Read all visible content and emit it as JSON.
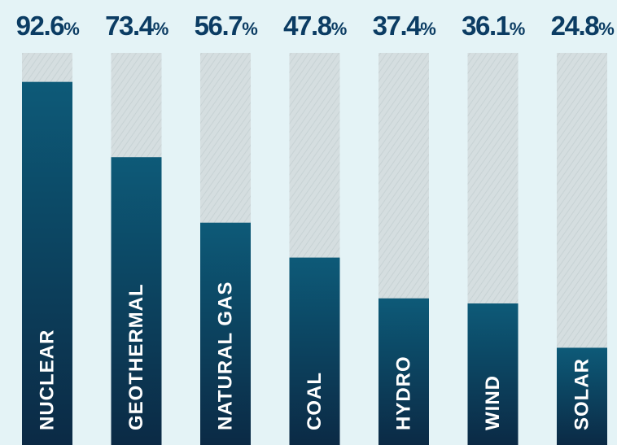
{
  "colors": {
    "background": "#e4f3f6",
    "bar_fill_top": "#0d5a78",
    "bar_fill_bottom": "#0b2a45",
    "bar_track": "#d5dee0",
    "bar_track_hatch": "#c7d2d4",
    "value_text": "#0b3c63",
    "label_text": "#ffffff"
  },
  "chart_data": {
    "type": "bar",
    "orientation": "vertical",
    "categories": [
      "NUCLEAR",
      "GEOTHERMAL",
      "NATURAL GAS",
      "COAL",
      "HYDRO",
      "WIND",
      "SOLAR"
    ],
    "values": [
      92.6,
      73.4,
      56.7,
      47.8,
      37.4,
      36.1,
      24.8
    ],
    "value_unit": "%",
    "ylim": [
      0,
      100
    ],
    "title": "",
    "xlabel": "",
    "ylabel": "",
    "grid": false,
    "legend": "none",
    "data_labels": "top",
    "category_labels": "inside-bar-vertical"
  }
}
